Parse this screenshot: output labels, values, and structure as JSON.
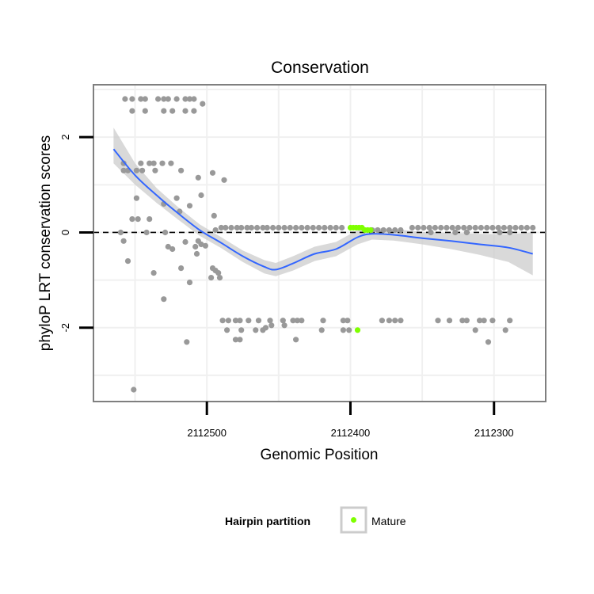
{
  "chart_data": {
    "type": "scatter",
    "title": "Conservation",
    "xlabel": "Genomic Position",
    "ylabel": "phyloP LRT conservation scores",
    "x_reversed": true,
    "xlim": [
      2112579,
      2112264
    ],
    "ylim": [
      -3.55,
      3.1
    ],
    "x_ticks": [
      2112500,
      2112400,
      2112300
    ],
    "x_tick_labels": [
      "2112500",
      "2112400",
      "2112300"
    ],
    "y_ticks": [
      -2,
      0,
      2
    ],
    "y_tick_labels": [
      "-2",
      "0",
      "2"
    ],
    "reference_line": {
      "y": 0,
      "style": "dashed"
    },
    "grid": true,
    "legend": {
      "title": "Hairpin partition",
      "position": "bottom",
      "entries": [
        {
          "label": "Mature",
          "color": "#7fff00"
        }
      ]
    },
    "colors": {
      "other": "#999999",
      "mature": "#7fff00",
      "smooth": "#3366ff",
      "band": "#cccccc"
    },
    "series": [
      {
        "name": "Other",
        "points": [
          [
            2112557,
            2.8
          ],
          [
            2112552,
            2.8
          ],
          [
            2112546,
            2.8
          ],
          [
            2112543,
            2.8
          ],
          [
            2112534,
            2.8
          ],
          [
            2112530,
            2.8
          ],
          [
            2112527,
            2.8
          ],
          [
            2112521,
            2.8
          ],
          [
            2112515,
            2.8
          ],
          [
            2112512,
            2.8
          ],
          [
            2112509,
            2.8
          ],
          [
            2112503,
            2.7
          ],
          [
            2112552,
            2.55
          ],
          [
            2112543,
            2.55
          ],
          [
            2112530,
            2.55
          ],
          [
            2112524,
            2.55
          ],
          [
            2112515,
            2.55
          ],
          [
            2112509,
            2.55
          ],
          [
            2112546,
            1.45
          ],
          [
            2112540,
            1.45
          ],
          [
            2112537,
            1.45
          ],
          [
            2112531,
            1.45
          ],
          [
            2112525,
            1.45
          ],
          [
            2112506,
            1.15
          ],
          [
            2112558,
            1.3
          ],
          [
            2112555,
            1.3
          ],
          [
            2112549,
            1.3
          ],
          [
            2112545,
            1.3
          ],
          [
            2112536,
            1.3
          ],
          [
            2112518,
            1.3
          ],
          [
            2112496,
            1.25
          ],
          [
            2112488,
            1.1
          ],
          [
            2112558,
            1.45
          ],
          [
            2112549,
            0.72
          ],
          [
            2112530,
            0.6
          ],
          [
            2112521,
            0.72
          ],
          [
            2112504,
            0.78
          ],
          [
            2112540,
            0.28
          ],
          [
            2112552,
            0.28
          ],
          [
            2112548,
            0.28
          ],
          [
            2112519,
            0.44
          ],
          [
            2112512,
            0.56
          ],
          [
            2112495,
            0.35
          ],
          [
            2112560,
            0
          ],
          [
            2112542,
            0
          ],
          [
            2112529,
            0
          ],
          [
            2112524,
            -0.35
          ],
          [
            2112515,
            -0.2
          ],
          [
            2112506,
            -0.18
          ],
          [
            2112558,
            -0.18
          ],
          [
            2112555,
            -0.6
          ],
          [
            2112527,
            -0.3
          ],
          [
            2112504,
            -0.25
          ],
          [
            2112501,
            -0.28
          ],
          [
            2112508,
            -0.3
          ],
          [
            2112507,
            -0.45
          ],
          [
            2112496,
            -0.75
          ],
          [
            2112494,
            -0.8
          ],
          [
            2112497,
            -0.95
          ],
          [
            2112492,
            -0.85
          ],
          [
            2112491,
            -0.95
          ],
          [
            2112537,
            -0.85
          ],
          [
            2112518,
            -0.75
          ],
          [
            2112512,
            -1.05
          ],
          [
            2112530,
            -1.4
          ],
          [
            2112551,
            -3.3
          ],
          [
            2112514,
            -2.3
          ],
          [
            2112489,
            -1.85
          ],
          [
            2112485,
            -1.85
          ],
          [
            2112480,
            -1.85
          ],
          [
            2112477,
            -1.85
          ],
          [
            2112471,
            -1.85
          ],
          [
            2112464,
            -1.85
          ],
          [
            2112456,
            -1.85
          ],
          [
            2112447,
            -1.85
          ],
          [
            2112440,
            -1.85
          ],
          [
            2112437,
            -1.85
          ],
          [
            2112434,
            -1.85
          ],
          [
            2112419,
            -1.85
          ],
          [
            2112486,
            -2.05
          ],
          [
            2112476,
            -2.05
          ],
          [
            2112466,
            -2.05
          ],
          [
            2112461,
            -2.05
          ],
          [
            2112459,
            -2.0
          ],
          [
            2112455,
            -1.95
          ],
          [
            2112446,
            -1.95
          ],
          [
            2112420,
            -2.05
          ],
          [
            2112405,
            -2.05
          ],
          [
            2112401,
            -2.05
          ],
          [
            2112480,
            -2.25
          ],
          [
            2112477,
            -2.25
          ],
          [
            2112438,
            -2.25
          ],
          [
            2112405,
            -1.85
          ],
          [
            2112402,
            -1.85
          ],
          [
            2112378,
            -1.85
          ],
          [
            2112373,
            -1.85
          ],
          [
            2112369,
            -1.85
          ],
          [
            2112365,
            -1.85
          ],
          [
            2112339,
            -1.85
          ],
          [
            2112331,
            -1.85
          ],
          [
            2112322,
            -1.85
          ],
          [
            2112319,
            -1.85
          ],
          [
            2112310,
            -1.85
          ],
          [
            2112307,
            -1.85
          ],
          [
            2112301,
            -1.85
          ],
          [
            2112289,
            -1.85
          ],
          [
            2112313,
            -2.05
          ],
          [
            2112292,
            -2.05
          ],
          [
            2112304,
            -2.3
          ],
          [
            2112494,
            0.05
          ],
          [
            2112490,
            0.1
          ],
          [
            2112487,
            0.1
          ],
          [
            2112483,
            0.1
          ],
          [
            2112479,
            0.1
          ],
          [
            2112476,
            0.1
          ],
          [
            2112472,
            0.1
          ],
          [
            2112469,
            0.1
          ],
          [
            2112465,
            0.1
          ],
          [
            2112461,
            0.1
          ],
          [
            2112458,
            0.1
          ],
          [
            2112454,
            0.1
          ],
          [
            2112450,
            0.1
          ],
          [
            2112446,
            0.1
          ],
          [
            2112442,
            0.1
          ],
          [
            2112438,
            0.1
          ],
          [
            2112434,
            0.1
          ],
          [
            2112430,
            0.1
          ],
          [
            2112426,
            0.1
          ],
          [
            2112422,
            0.1
          ],
          [
            2112418,
            0.1
          ],
          [
            2112414,
            0.1
          ],
          [
            2112410,
            0.1
          ],
          [
            2112406,
            0.1
          ],
          [
            2112385,
            0.05
          ],
          [
            2112381,
            0.05
          ],
          [
            2112377,
            0.05
          ],
          [
            2112373,
            0.05
          ],
          [
            2112369,
            0.05
          ],
          [
            2112365,
            0.05
          ],
          [
            2112357,
            0.1
          ],
          [
            2112353,
            0.1
          ],
          [
            2112349,
            0.1
          ],
          [
            2112345,
            0.1
          ],
          [
            2112341,
            0.1
          ],
          [
            2112337,
            0.1
          ],
          [
            2112333,
            0.1
          ],
          [
            2112329,
            0.1
          ],
          [
            2112325,
            0.1
          ],
          [
            2112321,
            0.1
          ],
          [
            2112317,
            0.1
          ],
          [
            2112313,
            0.1
          ],
          [
            2112309,
            0.1
          ],
          [
            2112305,
            0.1
          ],
          [
            2112301,
            0.1
          ],
          [
            2112297,
            0.1
          ],
          [
            2112293,
            0.1
          ],
          [
            2112289,
            0.1
          ],
          [
            2112285,
            0.1
          ],
          [
            2112281,
            0.1
          ],
          [
            2112277,
            0.1
          ],
          [
            2112273,
            0.1
          ],
          [
            2112344,
            0
          ],
          [
            2112327,
            0
          ],
          [
            2112319,
            0
          ],
          [
            2112296,
            0
          ],
          [
            2112289,
            0
          ]
        ]
      },
      {
        "name": "Mature",
        "points": [
          [
            2112400,
            0.1
          ],
          [
            2112398,
            0.1
          ],
          [
            2112396,
            0.1
          ],
          [
            2112394,
            0.1
          ],
          [
            2112392,
            0.1
          ],
          [
            2112390,
            0.05
          ],
          [
            2112388,
            0.05
          ],
          [
            2112386,
            0.05
          ],
          [
            2112395,
            -2.05
          ]
        ]
      }
    ],
    "smooth": {
      "x": [
        2112565,
        2112550,
        2112535,
        2112520,
        2112505,
        2112490,
        2112475,
        2112460,
        2112452,
        2112440,
        2112425,
        2112410,
        2112395,
        2112385,
        2112370,
        2112350,
        2112330,
        2112310,
        2112290,
        2112273
      ],
      "y": [
        1.75,
        1.2,
        0.78,
        0.4,
        0.05,
        -0.22,
        -0.5,
        -0.72,
        -0.78,
        -0.65,
        -0.45,
        -0.35,
        -0.1,
        -0.03,
        -0.05,
        -0.12,
        -0.18,
        -0.25,
        -0.32,
        -0.45
      ],
      "lower": [
        1.45,
        1.0,
        0.62,
        0.27,
        -0.07,
        -0.33,
        -0.62,
        -0.86,
        -0.92,
        -0.8,
        -0.6,
        -0.5,
        -0.25,
        -0.15,
        -0.17,
        -0.25,
        -0.35,
        -0.47,
        -0.62,
        -0.9
      ],
      "upper": [
        2.2,
        1.45,
        0.93,
        0.53,
        0.17,
        -0.1,
        -0.38,
        -0.58,
        -0.64,
        -0.5,
        -0.3,
        -0.2,
        0.05,
        0.1,
        0.07,
        0.01,
        -0.01,
        -0.03,
        -0.04,
        0.0
      ]
    }
  }
}
